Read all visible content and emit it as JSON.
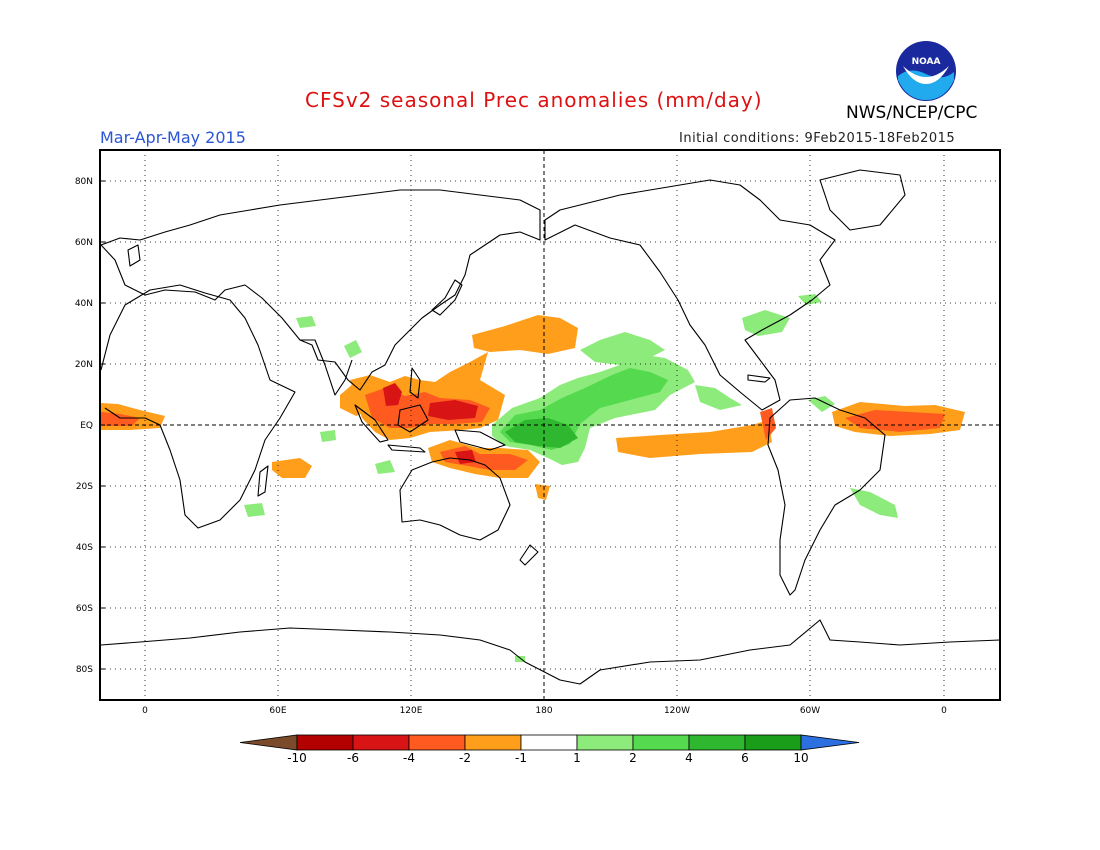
{
  "header": {
    "title": "CFSv2 seasonal Prec anomalies (mm/day)",
    "agency": "NWS/NCEP/CPC",
    "period": "Mar-Apr-May 2015",
    "initial_conditions": "Initial conditions: 9Feb2015-18Feb2015",
    "logo_text": "NOAA"
  },
  "map": {
    "lat_labels": [
      "80N",
      "60N",
      "40N",
      "20N",
      "EQ",
      "20S",
      "40S",
      "60S",
      "80S"
    ],
    "lon_labels": [
      "0",
      "60E",
      "120E",
      "180",
      "120W",
      "60W",
      "0"
    ]
  },
  "colorbar": {
    "labels": [
      "-10",
      "-6",
      "-4",
      "-2",
      "-1",
      "1",
      "2",
      "4",
      "6",
      "10"
    ],
    "colors": [
      "#7a4a2a",
      "#b30000",
      "#d91414",
      "#ff5a1f",
      "#ff9e1a",
      "#ffffff",
      "#8ceb7a",
      "#55d94f",
      "#2fb82f",
      "#1a9e1a",
      "#2b6fe0"
    ]
  },
  "colors": {
    "title": "#dd1111",
    "period": "#2a55d6",
    "dry_strong": "#d91414",
    "dry_moderate": "#ff5a1f",
    "dry_weak": "#ff9e1a",
    "wet_weak": "#8ceb7a",
    "wet_moderate": "#55d94f",
    "wet_strong": "#2fb82f"
  }
}
